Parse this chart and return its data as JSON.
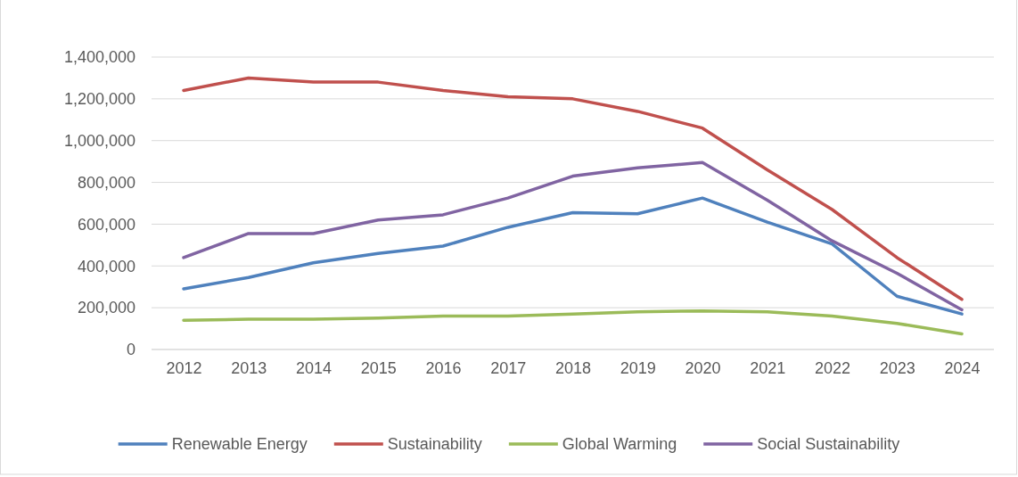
{
  "chart_data": {
    "type": "line",
    "categories": [
      "2012",
      "2013",
      "2014",
      "2015",
      "2016",
      "2017",
      "2018",
      "2019",
      "2020",
      "2021",
      "2022",
      "2023",
      "2024"
    ],
    "series": [
      {
        "name": "Renewable Energy",
        "color": "#4f81bd",
        "values": [
          290000,
          345000,
          415000,
          460000,
          495000,
          585000,
          655000,
          650000,
          725000,
          610000,
          505000,
          255000,
          170000
        ]
      },
      {
        "name": "Sustainability",
        "color": "#c0504d",
        "values": [
          1240000,
          1300000,
          1280000,
          1280000,
          1240000,
          1210000,
          1200000,
          1140000,
          1060000,
          860000,
          670000,
          440000,
          240000
        ]
      },
      {
        "name": "Global Warming",
        "color": "#9bbb59",
        "values": [
          140000,
          145000,
          145000,
          150000,
          160000,
          160000,
          170000,
          180000,
          185000,
          180000,
          160000,
          125000,
          75000
        ]
      },
      {
        "name": "Social Sustainability",
        "color": "#8064a2",
        "values": [
          440000,
          555000,
          555000,
          620000,
          645000,
          725000,
          830000,
          870000,
          895000,
          715000,
          520000,
          365000,
          190000
        ]
      }
    ],
    "ylim": [
      0,
      1400000
    ],
    "yticks": [
      {
        "value": 0,
        "label": "0"
      },
      {
        "value": 200000,
        "label": "200,000"
      },
      {
        "value": 400000,
        "label": "400,000"
      },
      {
        "value": 600000,
        "label": "600,000"
      },
      {
        "value": 800000,
        "label": "800,000"
      },
      {
        "value": 1000000,
        "label": "1,000,000"
      },
      {
        "value": 1200000,
        "label": "1,200,000"
      },
      {
        "value": 1400000,
        "label": "1,400,000"
      }
    ],
    "grid": "y",
    "legend": "bottom",
    "marker": "none",
    "line_style": "solid"
  }
}
